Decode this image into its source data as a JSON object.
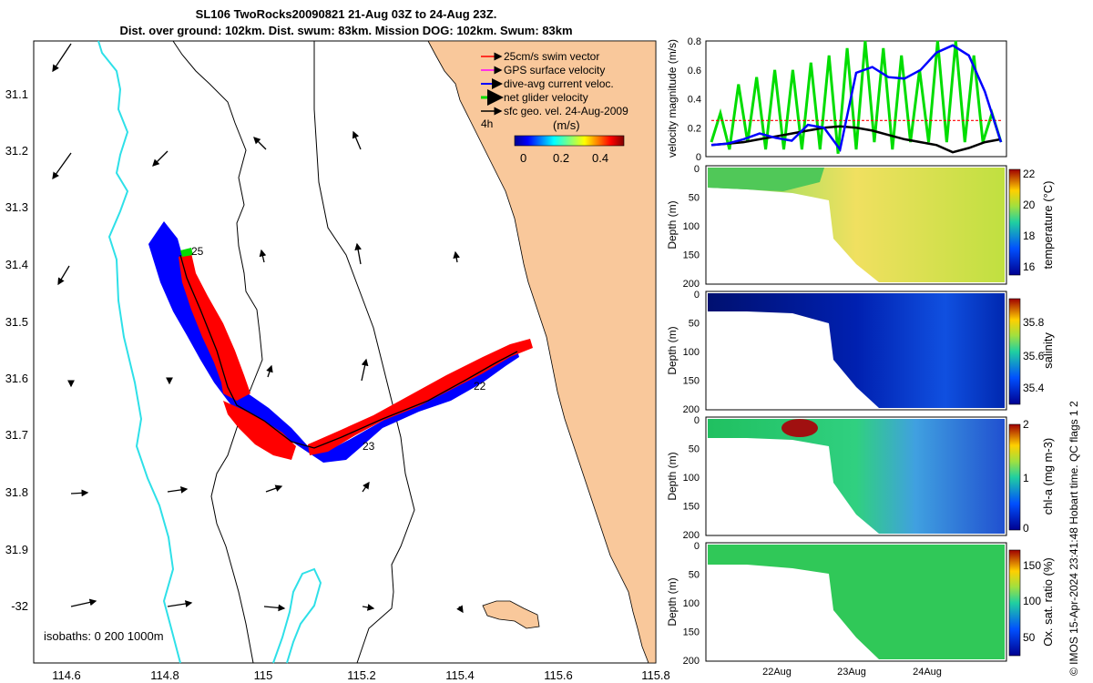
{
  "title_line1": "SL106 TwoRocks20090821 21-Aug 03Z to 24-Aug 23Z.",
  "title_line2": "Dist. over ground: 102km. Dist. swum: 83km. Mission DOG: 102km. Swum: 83km",
  "credit": "© IMOS 15-Apr-2024 23:41:48 Hobart time. QC flags 1  2",
  "colors": {
    "land": "#f9c89b",
    "coast_cyan": "#2ee0e8",
    "swim": "#ff0000",
    "gps": "#ff00ff",
    "dive_avg": "#0000ff",
    "net": "#00dd00",
    "geo": "#000000"
  },
  "map": {
    "legend": [
      {
        "label": "25cm/s swim vector",
        "color": "#ff0000"
      },
      {
        "label": "GPS surface velocity",
        "color": "#ff00ff"
      },
      {
        "label": "dive-avg current veloc.",
        "color": "#0000ff"
      },
      {
        "label": "net glider velocity",
        "color": "#00dd00"
      },
      {
        "label": "sfc geo. vel. 24-Aug-2009",
        "color": "#000000"
      }
    ],
    "time_label": "4h",
    "colorbar_label": "(m/s)",
    "colorbar_ticks": [
      "0",
      "0.2",
      "0.4"
    ],
    "isobaths": "isobaths: 0   200  1000m",
    "lon_ticks": [
      "114.6",
      "114.8",
      "115",
      "115.2",
      "115.4",
      "115.6",
      "115.8"
    ],
    "lat_ticks": [
      "31.1",
      "31.2",
      "31.3",
      "31.4",
      "31.5",
      "31.6",
      "31.7",
      "31.8",
      "31.9",
      "-32"
    ],
    "track_labels": [
      "25",
      "22",
      "23"
    ]
  },
  "chart_data": [
    {
      "type": "line",
      "title": "",
      "ylabel": "velocity magnitude (m/s)",
      "ylim": [
        0,
        0.8
      ],
      "yticks": [
        "0",
        "0.2",
        "0.4",
        "0.6",
        "0.8"
      ],
      "x_ticks": [
        "22Aug",
        "23Aug",
        "24Aug"
      ],
      "series": [
        {
          "name": "25cm/s swim vector",
          "color": "#ff0000",
          "values": [
            0.25,
            0.25,
            0.25,
            0.25,
            0.25,
            0.25,
            0.25,
            0.25
          ]
        },
        {
          "name": "dive-avg current veloc.",
          "color": "#0000ff",
          "values": [
            0.08,
            0.09,
            0.12,
            0.16,
            0.13,
            0.11,
            0.22,
            0.2,
            0.05,
            0.58,
            0.62,
            0.55,
            0.54,
            0.6,
            0.72,
            0.77,
            0.7,
            0.45,
            0.1
          ]
        },
        {
          "name": "sfc geo. vel. 24-Aug-2009",
          "color": "#000000",
          "values": [
            0.08,
            0.09,
            0.1,
            0.12,
            0.14,
            0.16,
            0.18,
            0.2,
            0.21,
            0.2,
            0.18,
            0.15,
            0.12,
            0.1,
            0.08,
            0.03,
            0.06,
            0.1,
            0.12
          ]
        },
        {
          "name": "net glider velocity",
          "color": "#00dd00",
          "values": [
            0.1,
            0.3,
            0.05,
            0.5,
            0.1,
            0.55,
            0.05,
            0.6,
            0.05,
            0.6,
            0.05,
            0.65,
            0.05,
            0.7,
            0.02,
            0.75,
            0.05,
            0.8,
            0.1,
            0.75,
            0.05,
            0.7,
            0.1,
            0.6,
            0.1,
            0.8,
            0.1,
            0.8,
            0.1,
            0.7,
            0.1,
            0.3,
            0.1
          ]
        }
      ]
    },
    {
      "type": "heatmap",
      "ylabel": "Depth (m)",
      "cblabel": "temperature (°C)",
      "cb_ticks": [
        "22",
        "20",
        "18",
        "16"
      ],
      "depth_ticks": [
        "0",
        "50",
        "100",
        "150",
        "200"
      ]
    },
    {
      "type": "heatmap",
      "ylabel": "Depth (m)",
      "cblabel": "salinity",
      "cb_ticks": [
        "35.8",
        "35.6",
        "35.4"
      ],
      "depth_ticks": [
        "0",
        "50",
        "100",
        "150",
        "200"
      ]
    },
    {
      "type": "heatmap",
      "ylabel": "Depth (m)",
      "cblabel": "chl-a (mg m-3)",
      "cb_ticks": [
        "2",
        "1",
        "0"
      ],
      "depth_ticks": [
        "0",
        "50",
        "100",
        "150",
        "200"
      ]
    },
    {
      "type": "heatmap",
      "ylabel": "Depth (m)",
      "cblabel": "Ox. sat. ratio (%)",
      "cb_ticks": [
        "150",
        "100",
        "50"
      ],
      "depth_ticks": [
        "0",
        "50",
        "100",
        "150",
        "200"
      ]
    }
  ]
}
